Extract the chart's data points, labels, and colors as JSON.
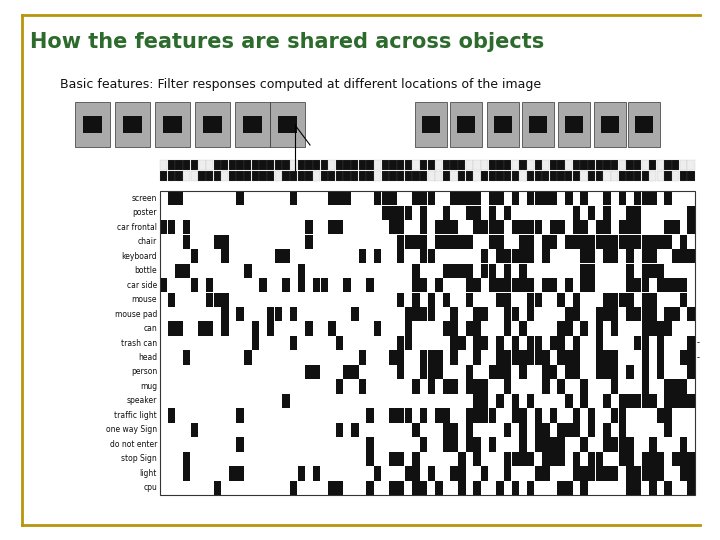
{
  "title": "How the features are shared across objects",
  "subtitle": "Basic features: Filter responses computed at different locations of the image",
  "title_color": "#2d6b2d",
  "title_fontsize": 15,
  "subtitle_fontsize": 9,
  "background_color": "#ffffff",
  "border_color": "#b8960c",
  "row_labels": [
    "screen",
    "poster",
    "car frontal",
    "chair",
    "keyboard",
    "bottle",
    "car side",
    "mouse",
    "mouse pad",
    "can",
    "trash can",
    "head",
    "person",
    "mug",
    "speaker",
    "traffic light",
    "one way Sign",
    "do not enter",
    "stop Sign",
    "light",
    "cpu"
  ],
  "n_rows": 21,
  "n_cols": 70
}
